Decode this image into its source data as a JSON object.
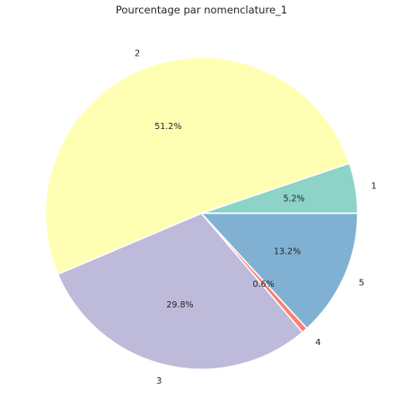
{
  "chart_data": {
    "type": "pie",
    "title": "Pourcentage par nomenclature_1",
    "slices": [
      {
        "label": "1",
        "value": 5.2,
        "pct_label": "5.2%",
        "color": "#8dd3c7"
      },
      {
        "label": "2",
        "value": 51.2,
        "pct_label": "51.2%",
        "color": "#ffffb3"
      },
      {
        "label": "3",
        "value": 29.8,
        "pct_label": "29.8%",
        "color": "#bebada"
      },
      {
        "label": "4",
        "value": 0.6,
        "pct_label": "0.6%",
        "color": "#fb8072"
      },
      {
        "label": "5",
        "value": 13.2,
        "pct_label": "13.2%",
        "color": "#80b1d3"
      }
    ],
    "start_angle": 0,
    "direction": "counterclockwise",
    "legend": "none"
  }
}
